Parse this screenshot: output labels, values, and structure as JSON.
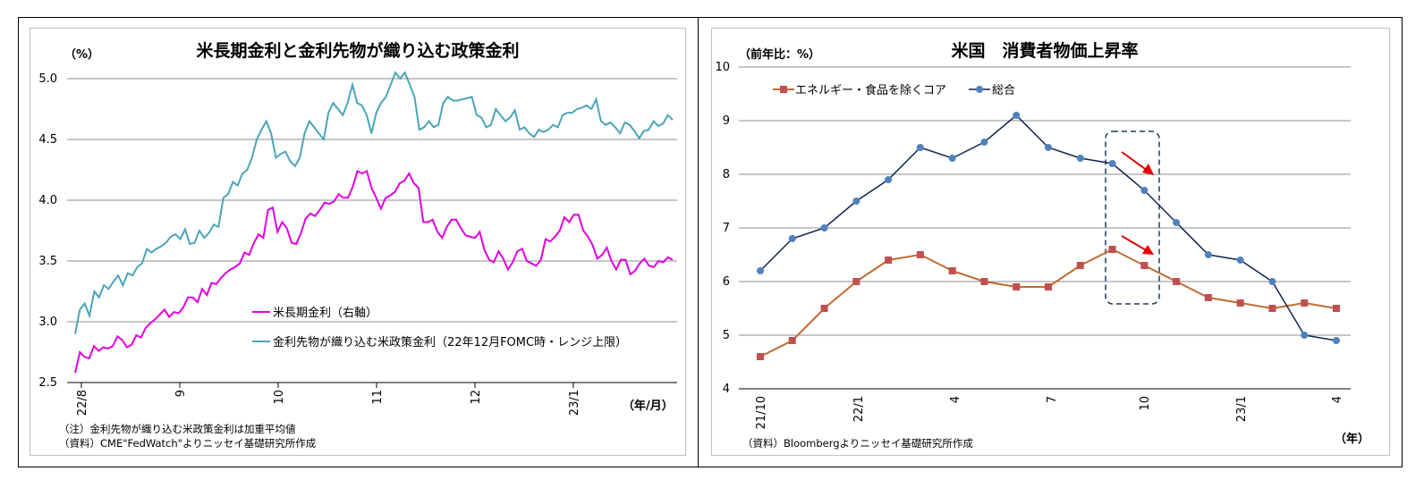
{
  "chart_data": [
    {
      "type": "line",
      "title": "米長期金利と金利先物が織り込む政策金利",
      "ylabel": "（%）",
      "xlabel": "（年/月）",
      "ylim": [
        2.5,
        5.0
      ],
      "yticks": [
        "5.0",
        "4.5",
        "4.0",
        "3.5",
        "3.0",
        "2.5"
      ],
      "xtick_labels": [
        "22/8",
        "9",
        "10",
        "11",
        "12",
        "23/1"
      ],
      "legend_placement": "bottom-center",
      "grid": true,
      "series": [
        {
          "name": "米長期金利（右軸）",
          "color": "#e000e0",
          "values": [
            2.58,
            2.75,
            2.71,
            2.7,
            2.8,
            2.76,
            2.79,
            2.78,
            2.8,
            2.88,
            2.85,
            2.79,
            2.81,
            2.89,
            2.87,
            2.95,
            2.99,
            3.02,
            3.06,
            3.1,
            3.04,
            3.08,
            3.07,
            3.12,
            3.2,
            3.2,
            3.16,
            3.27,
            3.22,
            3.32,
            3.31,
            3.36,
            3.4,
            3.43,
            3.45,
            3.48,
            3.57,
            3.55,
            3.65,
            3.72,
            3.69,
            3.92,
            3.94,
            3.74,
            3.82,
            3.77,
            3.65,
            3.64,
            3.73,
            3.85,
            3.89,
            3.87,
            3.92,
            3.98,
            3.97,
            3.99,
            4.05,
            4.02,
            4.02,
            4.11,
            4.24,
            4.22,
            4.24,
            4.1,
            4.02,
            3.93,
            4.02,
            4.04,
            4.07,
            4.14,
            4.16,
            4.22,
            4.14,
            4.1,
            3.82,
            3.82,
            3.84,
            3.74,
            3.69,
            3.78,
            3.84,
            3.84,
            3.77,
            3.71,
            3.7,
            3.69,
            3.74,
            3.59,
            3.51,
            3.49,
            3.58,
            3.52,
            3.43,
            3.49,
            3.58,
            3.6,
            3.5,
            3.48,
            3.46,
            3.51,
            3.68,
            3.66,
            3.7,
            3.75,
            3.86,
            3.82,
            3.88,
            3.88,
            3.75,
            3.7,
            3.63,
            3.52,
            3.55,
            3.61,
            3.5,
            3.43,
            3.51,
            3.51,
            3.39,
            3.42,
            3.48,
            3.52,
            3.46,
            3.45,
            3.5,
            3.49,
            3.53,
            3.51
          ]
        },
        {
          "name": "金利先物が織り込む米政策金利（22年12月FOMC時・レンジ上限）",
          "color": "#4aa5b8",
          "values": [
            2.9,
            3.1,
            3.15,
            3.05,
            3.25,
            3.2,
            3.3,
            3.27,
            3.33,
            3.38,
            3.3,
            3.4,
            3.38,
            3.45,
            3.48,
            3.6,
            3.57,
            3.6,
            3.62,
            3.65,
            3.7,
            3.72,
            3.68,
            3.76,
            3.64,
            3.65,
            3.75,
            3.69,
            3.73,
            3.8,
            3.78,
            4.02,
            4.05,
            4.15,
            4.12,
            4.22,
            4.25,
            4.35,
            4.5,
            4.58,
            4.65,
            4.55,
            4.35,
            4.38,
            4.4,
            4.32,
            4.28,
            4.35,
            4.55,
            4.65,
            4.6,
            4.55,
            4.5,
            4.72,
            4.8,
            4.75,
            4.7,
            4.8,
            4.95,
            4.8,
            4.78,
            4.7,
            4.55,
            4.72,
            4.8,
            4.85,
            4.95,
            5.05,
            5.0,
            5.05,
            4.95,
            4.85,
            4.58,
            4.6,
            4.65,
            4.6,
            4.62,
            4.8,
            4.85,
            4.82,
            4.82,
            4.83,
            4.84,
            4.85,
            4.7,
            4.68,
            4.6,
            4.62,
            4.75,
            4.7,
            4.65,
            4.68,
            4.74,
            4.58,
            4.6,
            4.55,
            4.52,
            4.58,
            4.56,
            4.58,
            4.62,
            4.6,
            4.7,
            4.72,
            4.72,
            4.75,
            4.76,
            4.78,
            4.75,
            4.83,
            4.65,
            4.62,
            4.64,
            4.6,
            4.55,
            4.64,
            4.62,
            4.57,
            4.51,
            4.57,
            4.58,
            4.65,
            4.61,
            4.63,
            4.7,
            4.66
          ]
        }
      ],
      "notes": [
        "（注）金利先物が織り込む米政策金利は加重平均値",
        "（資料）CME\"FedWatch\"よりニッセイ基礎研究所作成"
      ]
    },
    {
      "type": "line",
      "title": "米国　消費者物価上昇率",
      "ylabel": "（前年比：%）",
      "xlabel": "（年）",
      "ylim": [
        4,
        10
      ],
      "yticks": [
        "10",
        "9",
        "8",
        "7",
        "6",
        "5",
        "4"
      ],
      "categories": [
        "21/10",
        "21/11",
        "21/12",
        "22/1",
        "22/2",
        "22/3",
        "22/4",
        "22/5",
        "22/6",
        "22/7",
        "22/8",
        "22/9",
        "22/10",
        "22/11",
        "22/12",
        "23/1",
        "23/2",
        "23/3",
        "23/4"
      ],
      "xtick_labels": [
        "21/10",
        "22/1",
        "4",
        "7",
        "10",
        "23/1",
        "4"
      ],
      "legend_placement": "top-left",
      "grid": true,
      "series": [
        {
          "name": "エネルギー・食品を除くコア",
          "color": "#c0504d",
          "line_color": "#c06a30",
          "values": [
            4.6,
            4.9,
            5.5,
            6.0,
            6.4,
            6.5,
            6.2,
            6.0,
            5.9,
            5.9,
            6.3,
            6.6,
            6.3,
            6.0,
            5.7,
            5.6,
            5.5,
            5.6,
            5.5
          ]
        },
        {
          "name": "総合",
          "color": "#4f81bd",
          "line_color": "#0f2350",
          "values": [
            6.2,
            6.8,
            7.0,
            7.5,
            7.9,
            8.5,
            8.3,
            8.6,
            9.1,
            8.5,
            8.3,
            8.2,
            7.7,
            7.1,
            6.5,
            6.4,
            6.0,
            5.0,
            4.9
          ]
        }
      ],
      "annotation": "highlight box around 22/9–22/10 with red down arrows",
      "arrow_color": "#e00000",
      "notes": [
        "（資料）Bloombergよりニッセイ基礎研究所作成"
      ]
    }
  ]
}
